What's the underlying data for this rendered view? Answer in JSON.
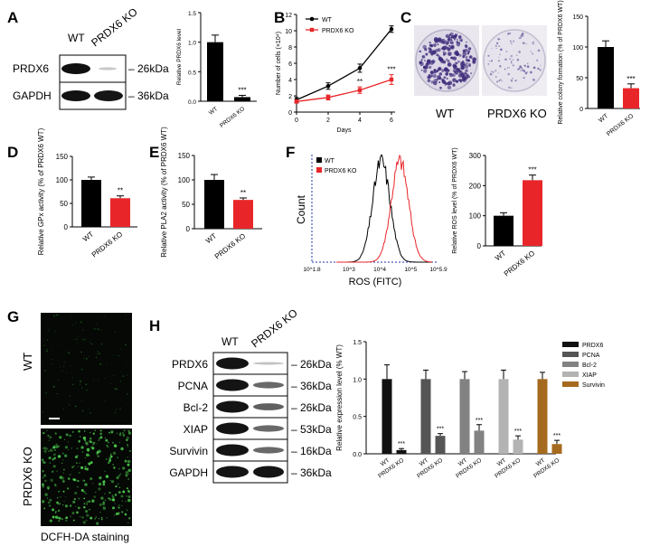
{
  "panel_labels": [
    "A",
    "B",
    "C",
    "D",
    "E",
    "F",
    "G",
    "H"
  ],
  "colors": {
    "wt": "#000000",
    "ko": "#e8262a",
    "bg_micro": "#050805",
    "green": "#3fc63f"
  },
  "blot_a": {
    "col_labels": [
      "WT",
      "PRDX6 KO"
    ],
    "rows": [
      {
        "protein": "PRDX6",
        "size": "– 26kDa"
      },
      {
        "protein": "GAPDH",
        "size": "– 36kDa"
      }
    ]
  },
  "blot_h": {
    "col_labels": [
      "WT",
      "PRDX6 KO"
    ],
    "rows": [
      {
        "protein": "PRDX6",
        "size": "– 26kDa"
      },
      {
        "protein": "PCNA",
        "size": "– 36kDa"
      },
      {
        "protein": "Bcl-2",
        "size": "– 26kDa"
      },
      {
        "protein": "XIAP",
        "size": "– 53kDa"
      },
      {
        "protein": "Survivin",
        "size": "– 16kDa"
      },
      {
        "protein": "GAPDH",
        "size": "– 36kDa"
      }
    ]
  },
  "panel_c": {
    "labels": [
      "WT",
      "PRDX6 KO"
    ]
  },
  "panel_g": {
    "row_labels": [
      "WT",
      "PRDX6 KO"
    ],
    "caption": "DCFH-DA staining"
  },
  "chart_data": [
    {
      "panel": "A",
      "type": "bar",
      "categories": [
        "WT",
        "PRDX6 KO"
      ],
      "values": [
        1.0,
        0.07
      ],
      "errors": [
        0.12,
        0.03
      ],
      "colors": [
        "#000000",
        "#000000"
      ],
      "ylabel": "Relative PRDX6 level",
      "ylim": [
        0,
        1.5
      ],
      "yticks": [
        "0.0",
        "0.5",
        "1.0",
        "1.5"
      ],
      "annotations": [
        "",
        "***"
      ]
    },
    {
      "panel": "B",
      "type": "line",
      "x": [
        0,
        2,
        4,
        6
      ],
      "xlabel": "Days",
      "ylabel": "Number of cells (×10⁴)",
      "ylim": [
        0,
        12
      ],
      "yticks": [
        "0",
        "2",
        "4",
        "6",
        "8",
        "10",
        "12"
      ],
      "xticks": [
        "0",
        "2",
        "4",
        "6"
      ],
      "series": [
        {
          "name": "WT",
          "values": [
            1.5,
            3.2,
            5.4,
            10.2
          ],
          "errors": [
            0.3,
            0.4,
            0.5,
            0.4
          ],
          "color": "#000000",
          "marker": "circle"
        },
        {
          "name": "PRDX6 KO",
          "values": [
            1.3,
            1.8,
            2.7,
            4.0
          ],
          "errors": [
            0.2,
            0.3,
            0.4,
            0.6
          ],
          "color": "#e8262a",
          "marker": "square"
        }
      ],
      "annotations": [
        "",
        "",
        "**",
        "***"
      ]
    },
    {
      "panel": "C",
      "type": "bar",
      "categories": [
        "WT",
        "PRDX6 KO"
      ],
      "values": [
        100,
        33
      ],
      "errors": [
        10,
        7
      ],
      "colors": [
        "#000000",
        "#e8262a"
      ],
      "ylabel": "Relative colony formation (% of PRDX6 WT)",
      "ylim": [
        0,
        150
      ],
      "yticks": [
        "0",
        "50",
        "100",
        "150"
      ],
      "annotations": [
        "",
        "***"
      ]
    },
    {
      "panel": "D",
      "type": "bar",
      "categories": [
        "WT",
        "PRDX6 KO"
      ],
      "values": [
        100,
        61
      ],
      "errors": [
        6,
        5
      ],
      "colors": [
        "#000000",
        "#e8262a"
      ],
      "ylabel": "Relative GPx activity (% of PRDX6 WT)",
      "ylim": [
        0,
        150
      ],
      "yticks": [
        "0",
        "50",
        "100",
        "150"
      ],
      "annotations": [
        "",
        "**"
      ]
    },
    {
      "panel": "E",
      "type": "bar",
      "categories": [
        "WT",
        "PRDX6 KO"
      ],
      "values": [
        100,
        59
      ],
      "errors": [
        11,
        4
      ],
      "colors": [
        "#000000",
        "#e8262a"
      ],
      "ylabel": "Relative PLA2 activity (% of PRDX6 WT)",
      "ylim": [
        0,
        150
      ],
      "yticks": [
        "0",
        "50",
        "100",
        "150"
      ],
      "annotations": [
        "",
        "**"
      ]
    },
    {
      "panel": "F-hist",
      "type": "area",
      "xlabel": "ROS (FITC)",
      "ylabel": "Count",
      "xticks": [
        "10^1.8",
        "10^3",
        "10^4",
        "10^5",
        "10^5.9"
      ],
      "series": [
        {
          "name": "WT",
          "color": "#000000",
          "peak_log": 4.05
        },
        {
          "name": "PRDX6 KO",
          "color": "#e8262a",
          "peak_log": 4.65
        }
      ]
    },
    {
      "panel": "F-bar",
      "type": "bar",
      "categories": [
        "WT",
        "PRDX6 KO"
      ],
      "values": [
        100,
        218
      ],
      "errors": [
        10,
        17
      ],
      "colors": [
        "#000000",
        "#e8262a"
      ],
      "ylabel": "Relative ROS level (% of PRDX6 WT)",
      "ylim": [
        0,
        300
      ],
      "yticks": [
        "0",
        "100",
        "200",
        "300"
      ],
      "annotations": [
        "",
        "***"
      ]
    },
    {
      "panel": "H",
      "type": "bar",
      "ylabel": "Relative expression level (% WT)",
      "ylim": [
        0,
        1.5
      ],
      "yticks": [
        "0.0",
        "0.5",
        "1.0",
        "1.5"
      ],
      "groups": [
        {
          "name": "PRDX6",
          "color": "#111111",
          "values": [
            1.0,
            0.05
          ],
          "errors": [
            0.19,
            0.02
          ]
        },
        {
          "name": "PCNA",
          "color": "#555555",
          "values": [
            1.0,
            0.24
          ],
          "errors": [
            0.12,
            0.03
          ]
        },
        {
          "name": "Bcl-2",
          "color": "#828282",
          "values": [
            1.0,
            0.31
          ],
          "errors": [
            0.1,
            0.08
          ]
        },
        {
          "name": "XIAP",
          "color": "#b3b3b3",
          "values": [
            1.0,
            0.19
          ],
          "errors": [
            0.12,
            0.05
          ]
        },
        {
          "name": "Survivin",
          "color": "#a66a1e",
          "values": [
            1.0,
            0.13
          ],
          "errors": [
            0.09,
            0.05
          ]
        }
      ],
      "categories": [
        "WT",
        "PRDX6 KO"
      ],
      "annotations": [
        "",
        "***"
      ]
    }
  ]
}
